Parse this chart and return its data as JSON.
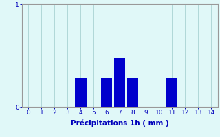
{
  "values": [
    0,
    0,
    0,
    0,
    0.28,
    0,
    0.28,
    0.48,
    0.28,
    0,
    0,
    0.28,
    0,
    0,
    0
  ],
  "x_positions": [
    0,
    1,
    2,
    3,
    4,
    5,
    6,
    7,
    8,
    9,
    10,
    11,
    12,
    13,
    14
  ],
  "bar_color": "#0000cc",
  "background_color": "#e0f8f8",
  "grid_color": "#b0d8d8",
  "xlabel": "Précipitations 1h ( mm )",
  "xlim": [
    -0.5,
    14.5
  ],
  "ylim": [
    0,
    1.0
  ],
  "yticks": [
    0,
    1
  ],
  "xticks": [
    0,
    1,
    2,
    3,
    4,
    5,
    6,
    7,
    8,
    9,
    10,
    11,
    12,
    13,
    14
  ],
  "tick_color": "#0000bb",
  "label_color": "#0000bb",
  "axis_color": "#999999",
  "bar_width": 0.85,
  "xlabel_fontsize": 7.5,
  "tick_fontsize": 6.5
}
